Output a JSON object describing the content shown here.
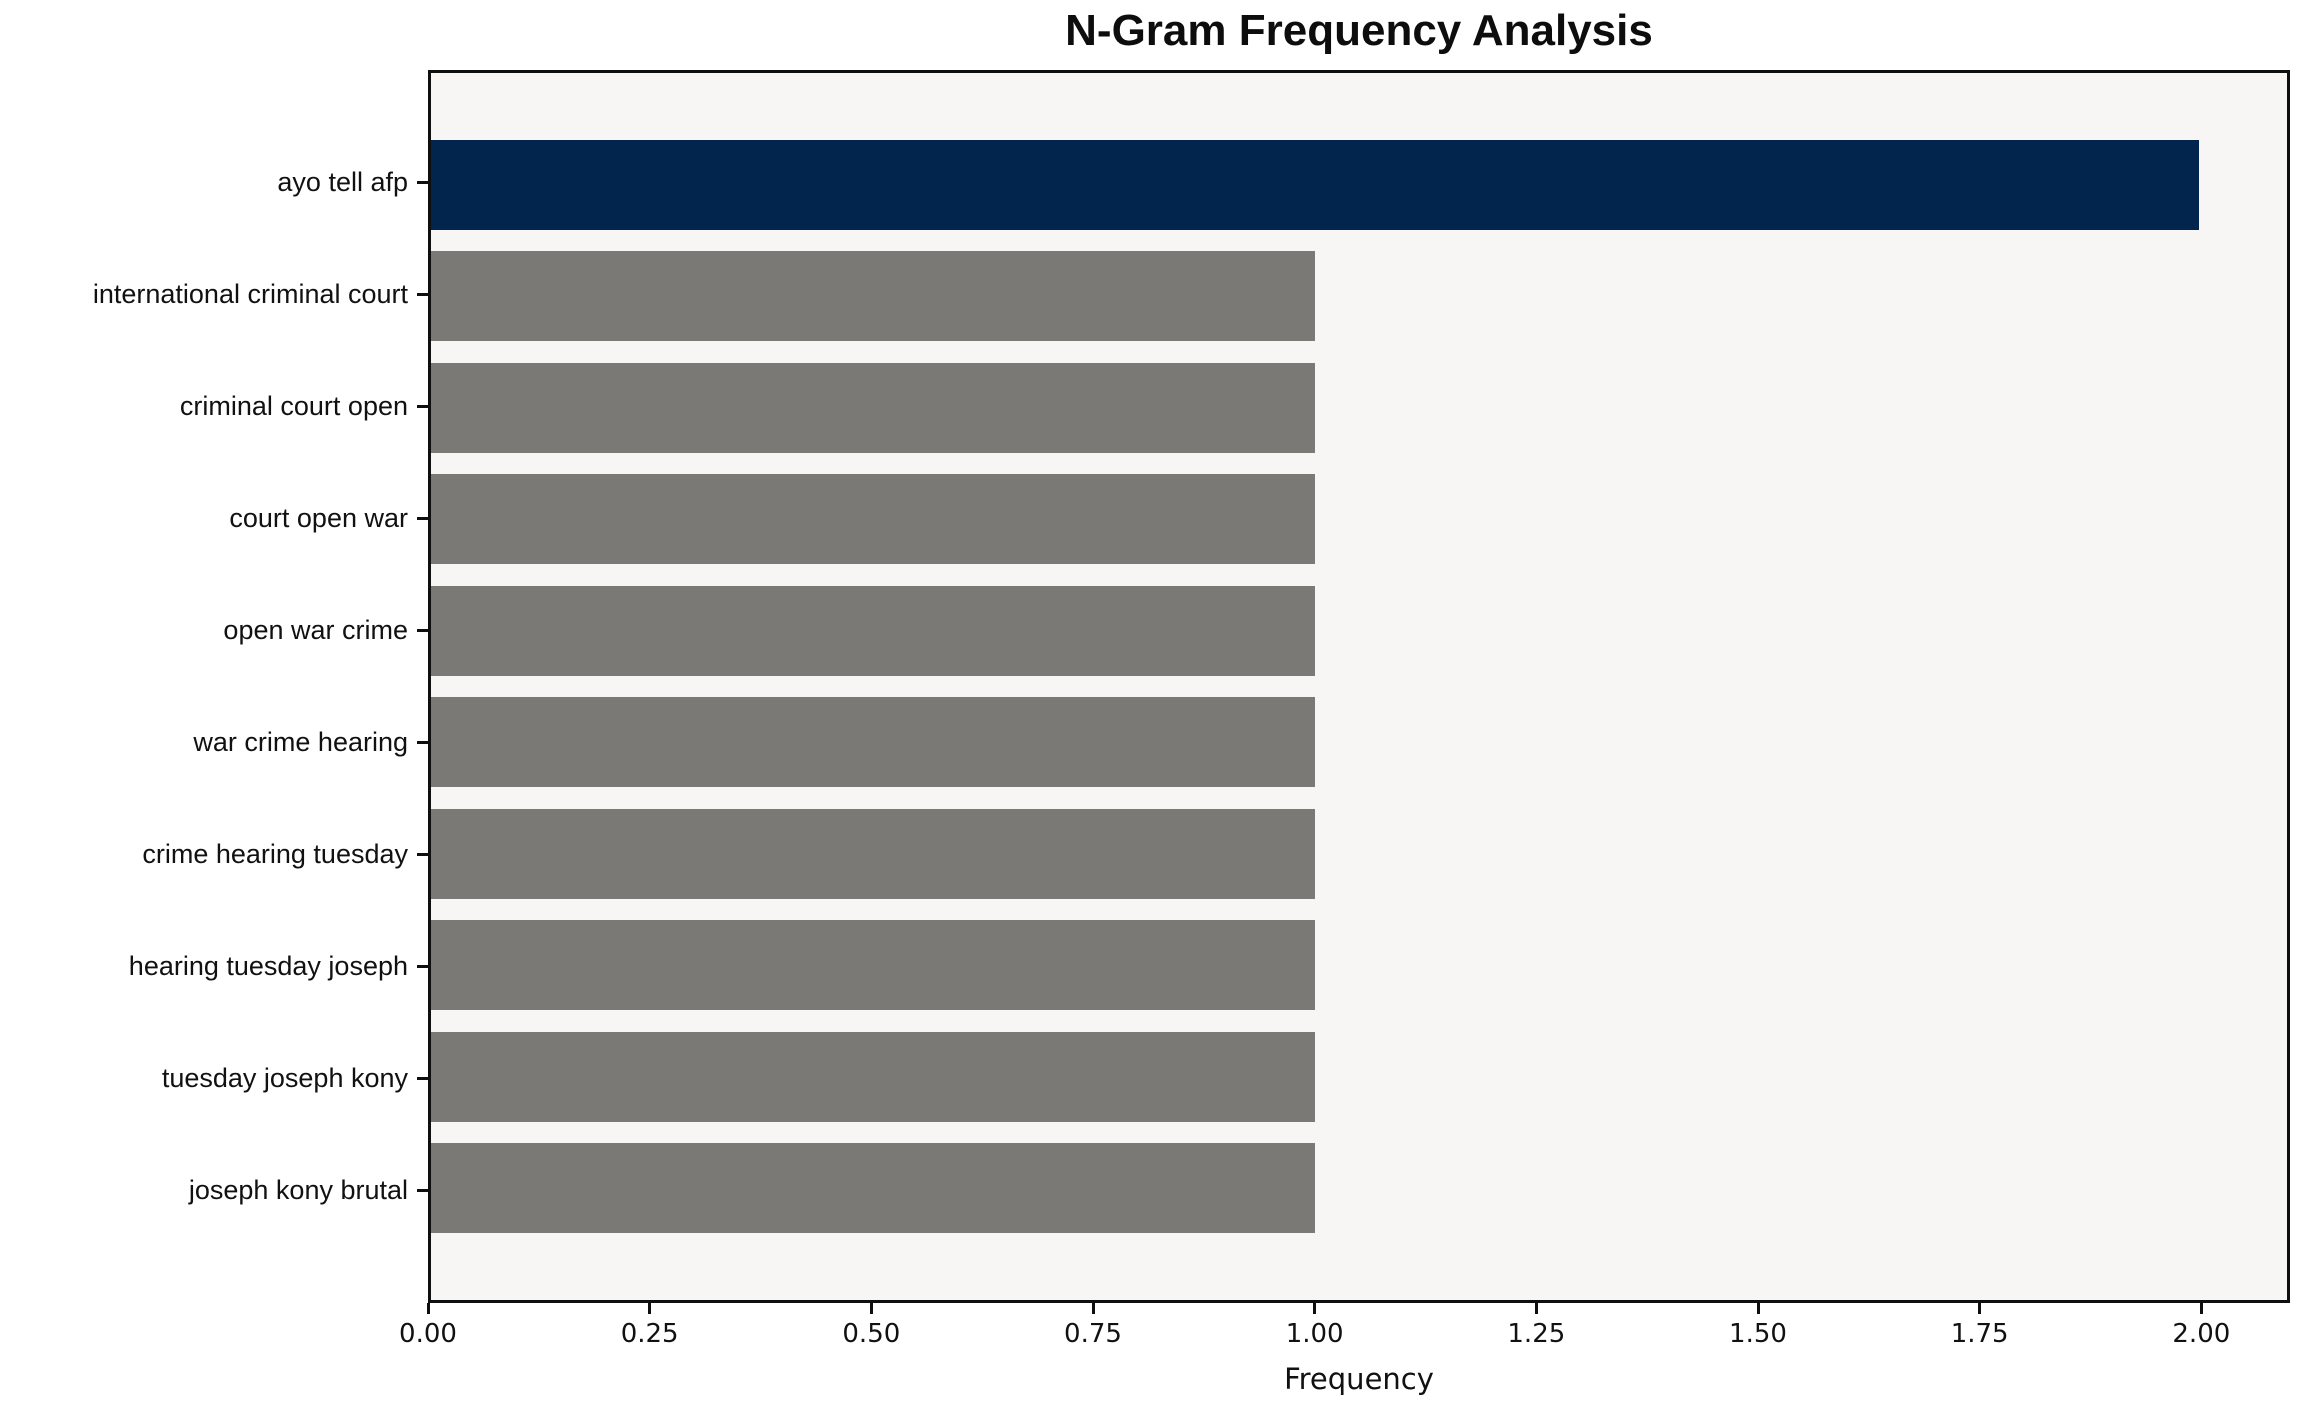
{
  "title": "N-Gram Frequency Analysis",
  "chart_data": {
    "type": "bar",
    "orientation": "horizontal",
    "title": "N-Gram Frequency Analysis",
    "xlabel": "Frequency",
    "ylabel": "",
    "categories": [
      "ayo tell afp",
      "international criminal court",
      "criminal court open",
      "court open war",
      "open war crime",
      "war crime hearing",
      "crime hearing tuesday",
      "hearing tuesday joseph",
      "tuesday joseph kony",
      "joseph kony brutal"
    ],
    "values": [
      2,
      1,
      1,
      1,
      1,
      1,
      1,
      1,
      1,
      1
    ],
    "bar_colors": [
      "#02254E",
      "#7B7975",
      "#7B7975",
      "#7B7975",
      "#7B7975",
      "#7B7975",
      "#7B7975",
      "#7B7975",
      "#7B7975",
      "#7B7975"
    ],
    "xlim": [
      0,
      2.1
    ],
    "xticks": [
      "0.00",
      "0.25",
      "0.50",
      "0.75",
      "1.00",
      "1.25",
      "1.50",
      "1.75",
      "2.00"
    ],
    "grid": false,
    "legend": false,
    "colors": {
      "highlight": "#02254E",
      "default_bar": "#7B7975",
      "plot_background": "#F7F6F5",
      "figure_background": "#FFFFFF",
      "spine": "#0F0F0F",
      "text": "#111111"
    }
  }
}
